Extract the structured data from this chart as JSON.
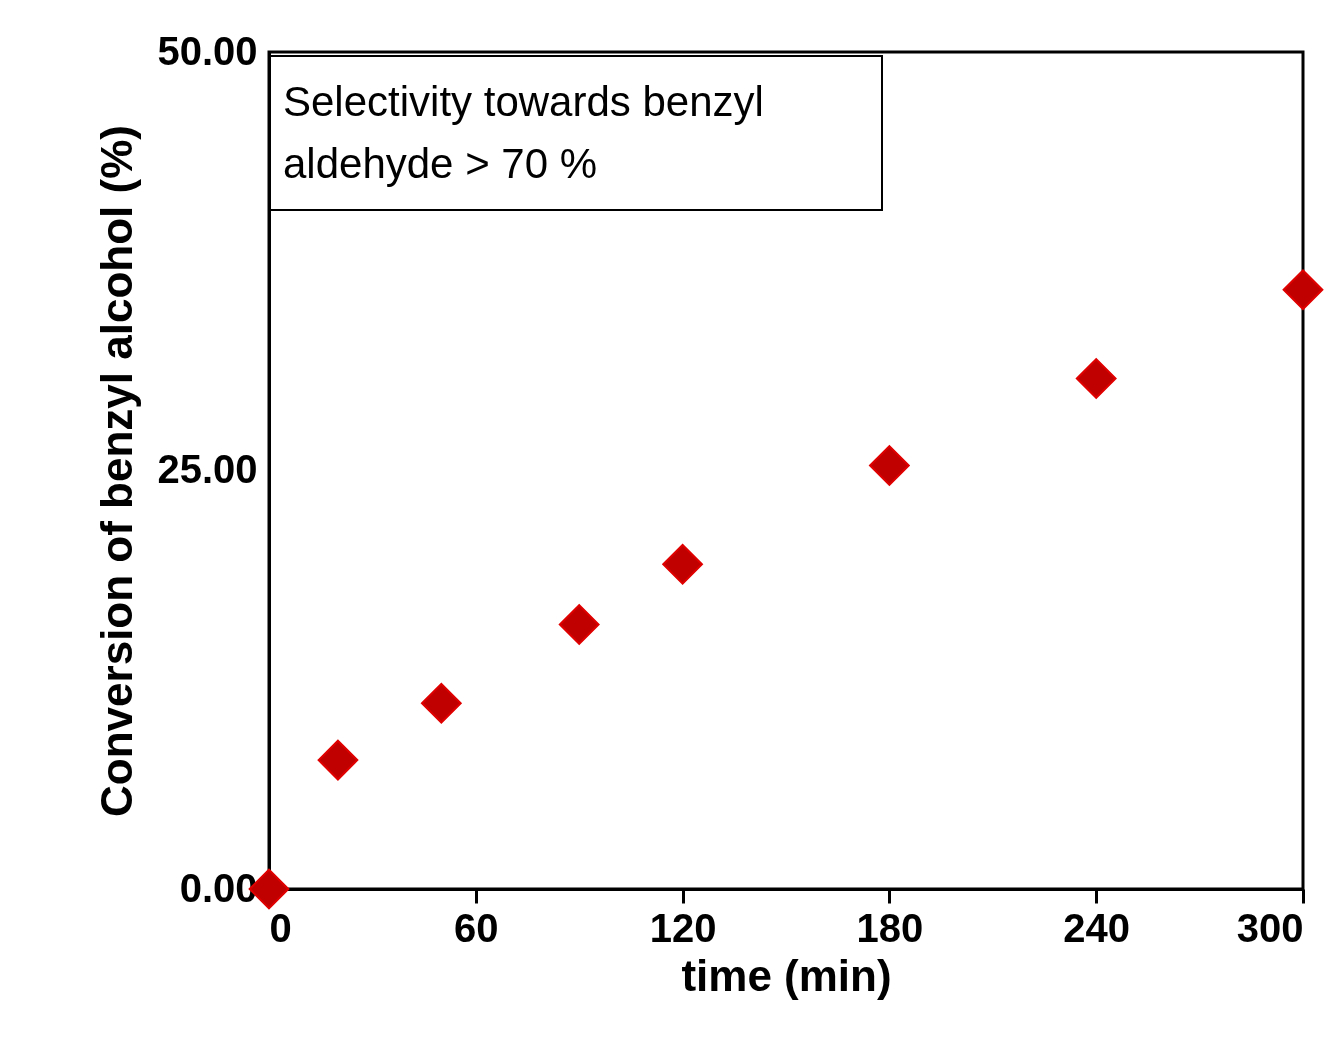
{
  "chart_data": {
    "type": "scatter",
    "xlabel": "time (min)",
    "ylabel": "Conversion of benzyl alcohol  (%)",
    "x": [
      0,
      20,
      50,
      90,
      120,
      180,
      240,
      300
    ],
    "series": [
      {
        "color": "#c00000",
        "values": [
          0,
          7.7,
          11.1,
          15.8,
          19.4,
          25.3,
          30.5,
          35.8
        ]
      }
    ],
    "xlim": [
      0,
      300
    ],
    "xticks": [
      0,
      60,
      120,
      180,
      240,
      300
    ],
    "ylim": [
      0,
      50
    ],
    "yticks": [
      {
        "value": 0,
        "label": "0.00"
      },
      {
        "value": 25,
        "label": "25.00"
      },
      {
        "value": 50,
        "label": "50.00"
      }
    ],
    "marker": "diamond",
    "grid": false,
    "annotations": [
      "Selectivity towards benzyl aldehyde > 70 %"
    ]
  }
}
